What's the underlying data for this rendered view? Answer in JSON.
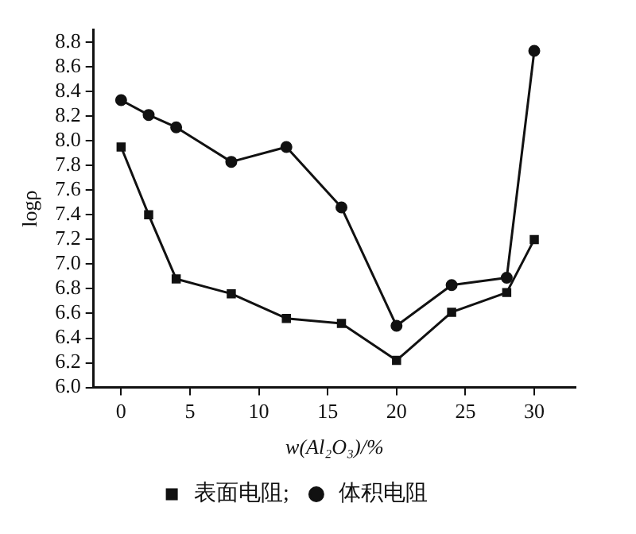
{
  "chart_data": {
    "type": "line",
    "xlabel": "w(Al₂O₃)/%",
    "ylabel": "logρ",
    "x": [
      0,
      2,
      4,
      8,
      12,
      16,
      20,
      24,
      28,
      30
    ],
    "series": [
      {
        "name": "表面电阻;",
        "color": "#111111",
        "marker": "square",
        "values": [
          7.95,
          7.4,
          6.88,
          6.76,
          6.56,
          6.52,
          6.22,
          6.61,
          6.77,
          7.2
        ]
      },
      {
        "name": "体积电阻",
        "color": "#111111",
        "marker": "circle",
        "values": [
          8.33,
          8.21,
          8.11,
          7.83,
          7.95,
          7.46,
          6.5,
          6.83,
          6.89,
          8.73
        ]
      }
    ],
    "xlim": [
      -2,
      33
    ],
    "xticks": [
      0,
      5,
      10,
      15,
      20,
      25,
      30
    ],
    "ylim": [
      6.0,
      8.9
    ],
    "yticks": [
      {
        "value": 6,
        "label": "6.0"
      },
      6.2,
      6.4,
      6.6,
      6.8,
      {
        "value": 7,
        "label": "7.0"
      },
      7.2,
      7.4,
      7.6,
      7.8,
      {
        "value": 8,
        "label": "8.0"
      },
      8.2,
      8.4,
      8.6,
      8.8
    ],
    "grid": false,
    "legend": "bottom",
    "line_style": "solid"
  }
}
